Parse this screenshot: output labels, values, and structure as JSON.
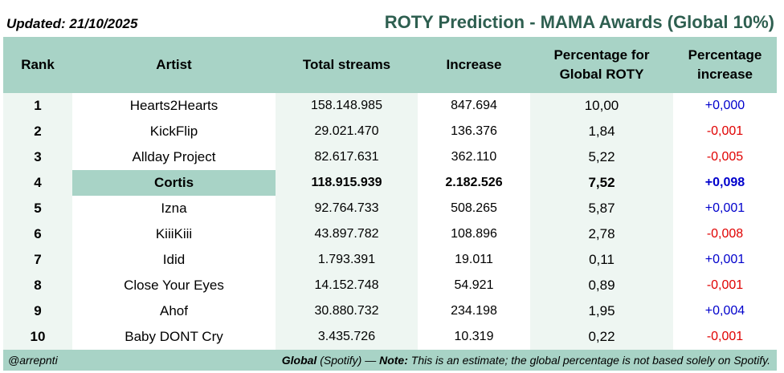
{
  "header": {
    "updated": "Updated: 21/10/2025",
    "title": "ROTY Prediction - MAMA Awards (Global 10%)"
  },
  "columns": {
    "rank": "Rank",
    "artist": "Artist",
    "total_streams": "Total streams",
    "increase": "Increase",
    "pct_global_line1": "Percentage for",
    "pct_global_line2": "Global ROTY",
    "pct_increase_line1": "Percentage",
    "pct_increase_line2": "increase"
  },
  "rows": [
    {
      "rank": "1",
      "artist": "Hearts2Hearts",
      "streams": "158.148.985",
      "increase": "847.694",
      "pct": "10,00",
      "pct_inc": "+0,000"
    },
    {
      "rank": "2",
      "artist": "KickFlip",
      "streams": "29.021.470",
      "increase": "136.376",
      "pct": "1,84",
      "pct_inc": "-0,001"
    },
    {
      "rank": "3",
      "artist": "Allday Project",
      "streams": "82.617.631",
      "increase": "362.110",
      "pct": "5,22",
      "pct_inc": "-0,005"
    },
    {
      "rank": "4",
      "artist": "Cortis",
      "streams": "118.915.939",
      "increase": "2.182.526",
      "pct": "7,52",
      "pct_inc": "+0,098"
    },
    {
      "rank": "5",
      "artist": "Izna",
      "streams": "92.764.733",
      "increase": "508.265",
      "pct": "5,87",
      "pct_inc": "+0,001"
    },
    {
      "rank": "6",
      "artist": "KiiiKiii",
      "streams": "43.897.782",
      "increase": "108.896",
      "pct": "2,78",
      "pct_inc": "-0,008"
    },
    {
      "rank": "7",
      "artist": "Idid",
      "streams": "1.793.391",
      "increase": "19.011",
      "pct": "0,11",
      "pct_inc": "+0,001"
    },
    {
      "rank": "8",
      "artist": "Close Your Eyes",
      "streams": "14.152.748",
      "increase": "54.921",
      "pct": "0,89",
      "pct_inc": "-0,001"
    },
    {
      "rank": "9",
      "artist": "Ahof",
      "streams": "30.880.732",
      "increase": "234.198",
      "pct": "1,95",
      "pct_inc": "+0,004"
    },
    {
      "rank": "10",
      "artist": "Baby DONT Cry",
      "streams": "3.435.726",
      "increase": "10.319",
      "pct": "0,22",
      "pct_inc": "-0,001"
    }
  ],
  "footer": {
    "handle": "@arrepnti",
    "global_label": "Global",
    "source": "(Spotify) —",
    "note_label": "Note:",
    "note_text": "This is an estimate; the global percentage is not based solely on Spotify."
  },
  "colors": {
    "header_bg": "#a8d3c6",
    "title": "#2e5f50",
    "positive": "#0000cc",
    "negative": "#e00000"
  }
}
